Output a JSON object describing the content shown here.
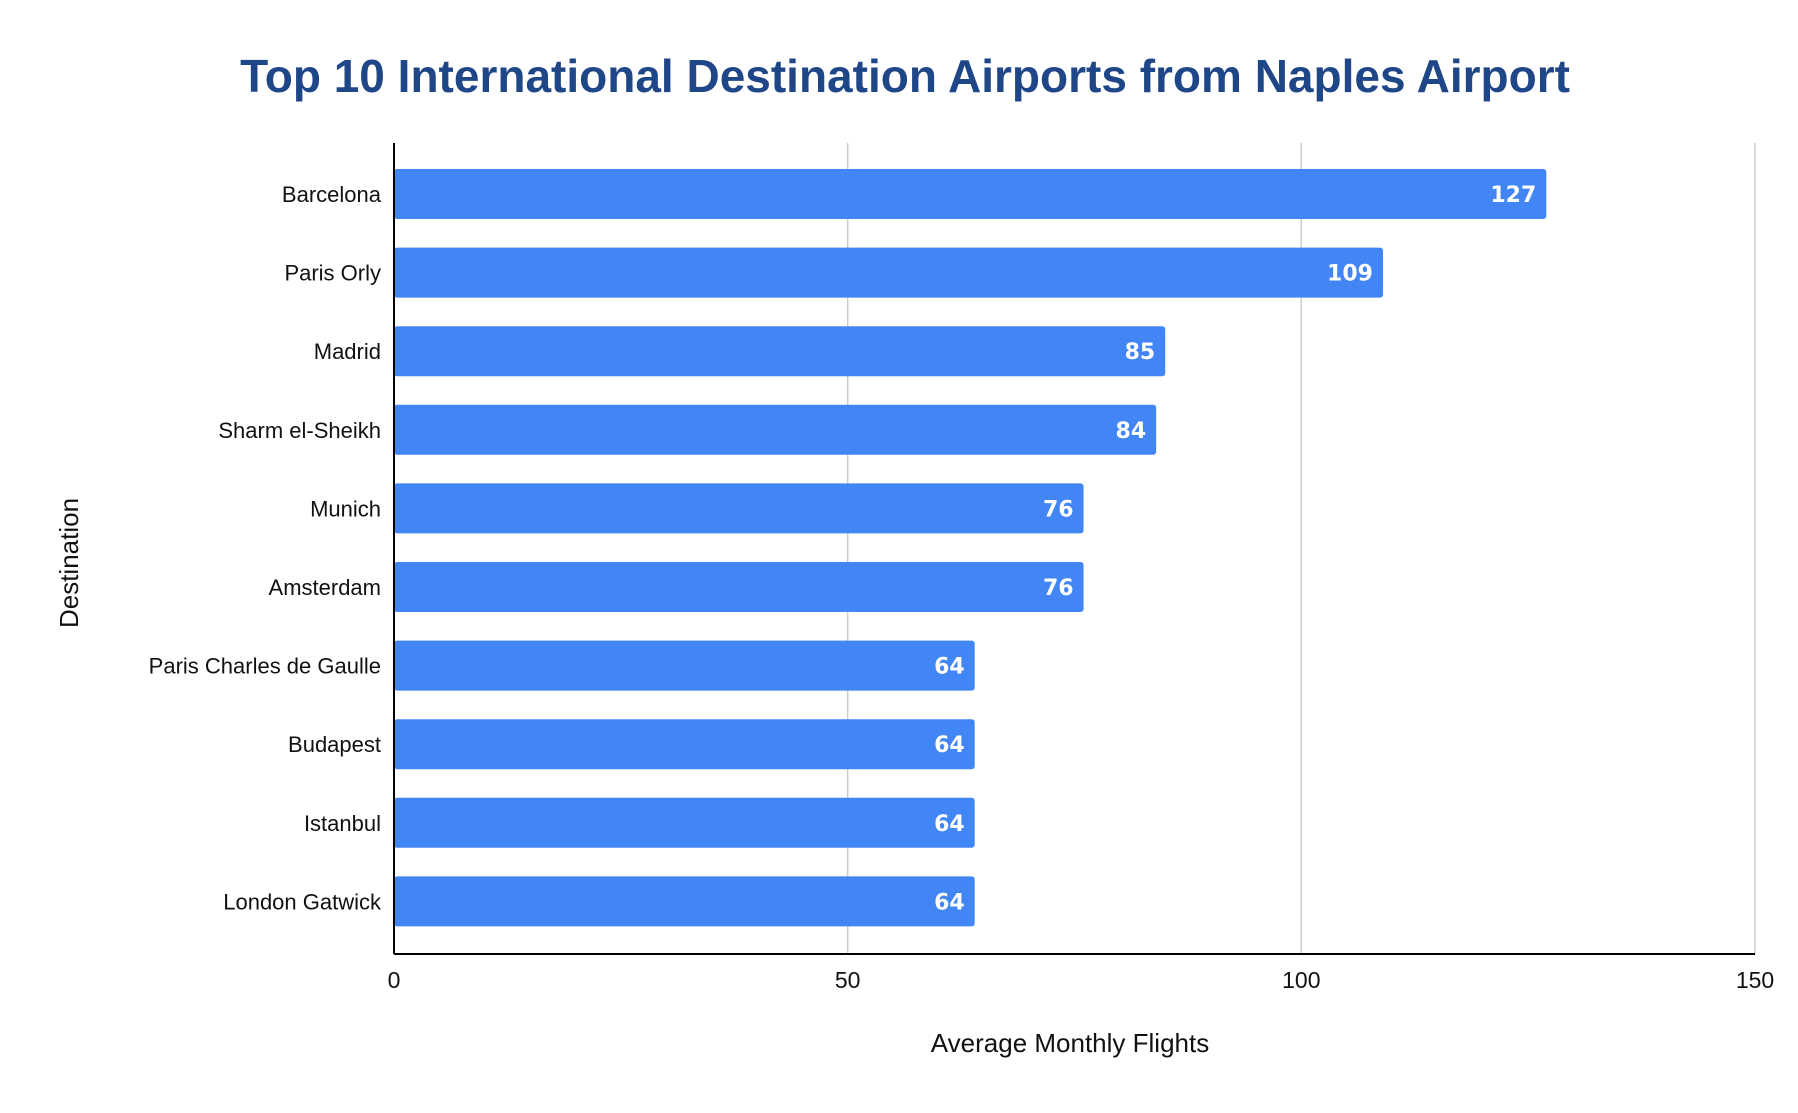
{
  "colors": {
    "title": "#1f4788",
    "bar": "#4285f4",
    "grid": "#cccccc",
    "axis": "#000000",
    "bar_label": "#ffffff"
  },
  "chart_data": {
    "type": "bar",
    "orientation": "horizontal",
    "title": "Top 10 International Destination Airports from Naples Airport",
    "xlabel": "Average Monthly Flights",
    "ylabel": "Destination",
    "categories": [
      "Barcelona",
      "Paris Orly",
      "Madrid",
      "Sharm el-Sheikh",
      "Munich",
      "Amsterdam",
      "Paris Charles de Gaulle",
      "Budapest",
      "Istanbul",
      "London Gatwick"
    ],
    "values": [
      127,
      109,
      85,
      84,
      76,
      76,
      64,
      64,
      64,
      64
    ],
    "xlim": [
      0,
      150
    ],
    "xticks": [
      0,
      50,
      100,
      150
    ],
    "grid": true,
    "data_labels": true,
    "legend": false
  }
}
